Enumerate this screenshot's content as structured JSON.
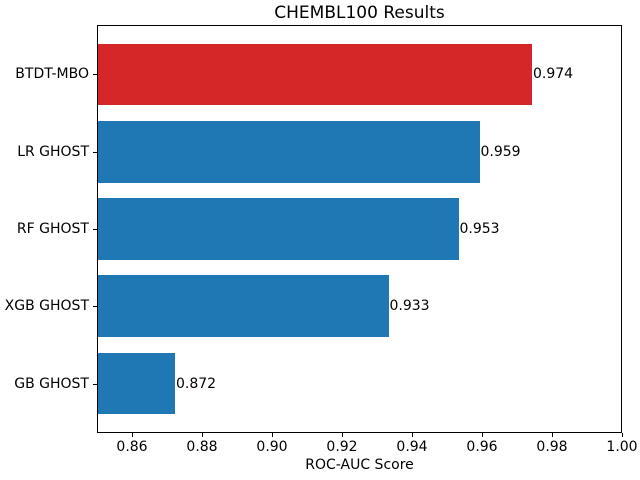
{
  "chart_data": {
    "type": "bar",
    "orientation": "horizontal",
    "title": "CHEMBL100 Results",
    "xlabel": "ROC-AUC Score",
    "ylabel": "",
    "categories": [
      "BTDT-MBO",
      "LR GHOST",
      "RF GHOST",
      "XGB GHOST",
      "GB GHOST"
    ],
    "values": [
      0.974,
      0.959,
      0.953,
      0.933,
      0.872
    ],
    "value_labels": [
      "0.974",
      "0.959",
      "0.953",
      "0.933",
      "0.872"
    ],
    "bar_colors": [
      "#d62728",
      "#1f77b4",
      "#1f77b4",
      "#1f77b4",
      "#1f77b4"
    ],
    "highlight_color": "#d62728",
    "default_bar_color": "#1f77b4",
    "xlim": [
      0.85,
      1.0
    ],
    "xticks": [
      0.86,
      0.88,
      0.9,
      0.92,
      0.94,
      0.96,
      0.98,
      1.0
    ],
    "xtick_labels": [
      "0.86",
      "0.88",
      "0.90",
      "0.92",
      "0.94",
      "0.96",
      "0.98",
      "1.00"
    ],
    "grid": false,
    "legend": null,
    "bar_height_fraction": 0.8
  }
}
